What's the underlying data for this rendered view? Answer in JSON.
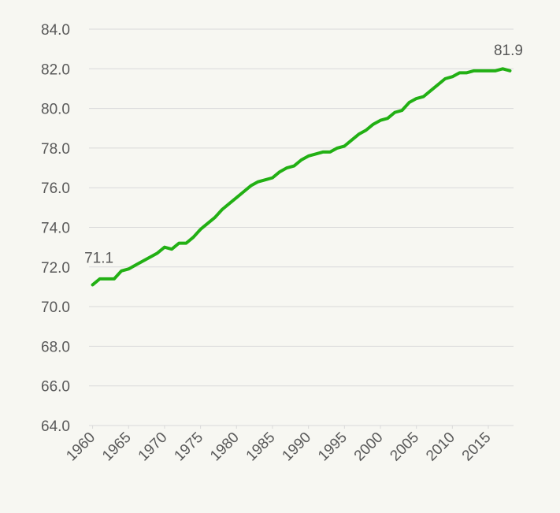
{
  "chart_data": {
    "type": "line",
    "x": [
      1960,
      1961,
      1962,
      1963,
      1964,
      1965,
      1966,
      1967,
      1968,
      1969,
      1970,
      1971,
      1972,
      1973,
      1974,
      1975,
      1976,
      1977,
      1978,
      1979,
      1980,
      1981,
      1982,
      1983,
      1984,
      1985,
      1986,
      1987,
      1988,
      1989,
      1990,
      1991,
      1992,
      1993,
      1994,
      1995,
      1996,
      1997,
      1998,
      1999,
      2000,
      2001,
      2002,
      2003,
      2004,
      2005,
      2006,
      2007,
      2008,
      2009,
      2010,
      2011,
      2012,
      2013,
      2014,
      2015,
      2016,
      2017,
      2018
    ],
    "values": [
      71.1,
      71.4,
      71.4,
      71.4,
      71.8,
      71.9,
      72.1,
      72.3,
      72.5,
      72.7,
      73.0,
      72.9,
      73.2,
      73.2,
      73.5,
      73.9,
      74.2,
      74.5,
      74.9,
      75.2,
      75.5,
      75.8,
      76.1,
      76.3,
      76.4,
      76.5,
      76.8,
      77.0,
      77.1,
      77.4,
      77.6,
      77.7,
      77.8,
      77.8,
      78.0,
      78.1,
      78.4,
      78.7,
      78.9,
      79.2,
      79.4,
      79.5,
      79.8,
      79.9,
      80.3,
      80.5,
      80.6,
      80.9,
      81.2,
      81.5,
      81.6,
      81.8,
      81.8,
      81.9,
      81.9,
      81.9,
      81.9,
      82.0,
      81.9
    ],
    "color": "#22b014",
    "xlim": [
      1959.5,
      2018.5
    ],
    "xticks": [
      1960,
      1965,
      1970,
      1975,
      1980,
      1985,
      1990,
      1995,
      2000,
      2005,
      2010,
      2015
    ],
    "ylim": [
      64,
      84
    ],
    "yticks": [
      {
        "value": 64,
        "label": "64.0"
      },
      {
        "value": 66,
        "label": "66.0"
      },
      {
        "value": 68,
        "label": "68.0"
      },
      {
        "value": 70,
        "label": "70.0"
      },
      {
        "value": 72,
        "label": "72.0"
      },
      {
        "value": 74,
        "label": "74.0"
      },
      {
        "value": 76,
        "label": "76.0"
      },
      {
        "value": 78,
        "label": "78.0"
      },
      {
        "value": 80,
        "label": "80.0"
      },
      {
        "value": 82,
        "label": "82.0"
      },
      {
        "value": 84,
        "label": "84.0"
      }
    ],
    "grid": true,
    "grid_color": "#d9d9d9"
  }
}
